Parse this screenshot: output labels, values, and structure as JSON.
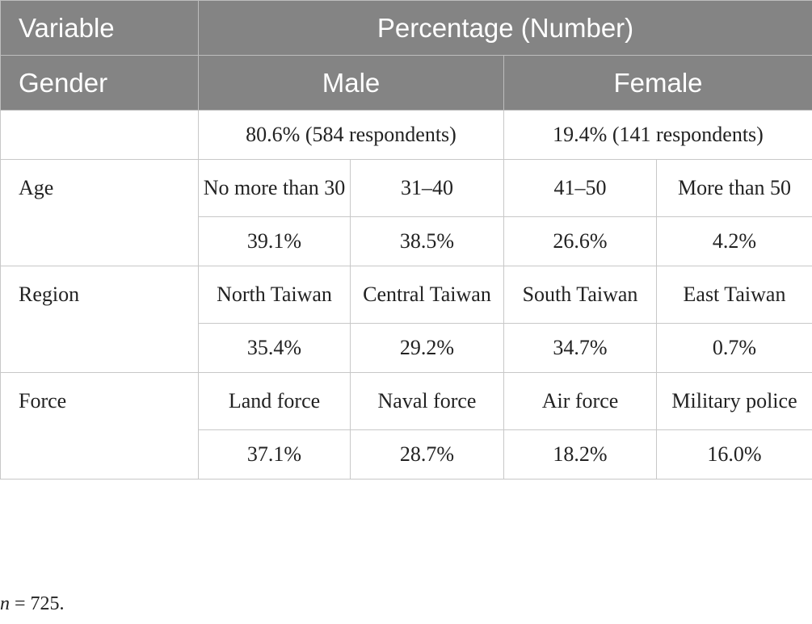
{
  "header": {
    "variable": "Variable",
    "percentage": "Percentage (Number)",
    "gender": "Gender",
    "male": "Male",
    "female": "Female"
  },
  "gender_counts": {
    "male": "80.6% (584 respondents)",
    "female": "19.4% (141 respondents)"
  },
  "age": {
    "label": "Age",
    "categories": [
      "No more than 30",
      "31–40",
      "41–50",
      "More than 50"
    ],
    "values": [
      "39.1%",
      "38.5%",
      "26.6%",
      "4.2%"
    ]
  },
  "region": {
    "label": "Region",
    "categories": [
      "North Taiwan",
      "Central Taiwan",
      "South Taiwan",
      "East Taiwan"
    ],
    "values": [
      "35.4%",
      "29.2%",
      "34.7%",
      "0.7%"
    ]
  },
  "force": {
    "label": "Force",
    "categories": [
      "Land force",
      "Naval force",
      "Air force",
      "Military police"
    ],
    "values": [
      "37.1%",
      "28.7%",
      "18.2%",
      "16.0%"
    ]
  },
  "note": {
    "n_symbol": "n",
    "n_value": " = 725."
  }
}
